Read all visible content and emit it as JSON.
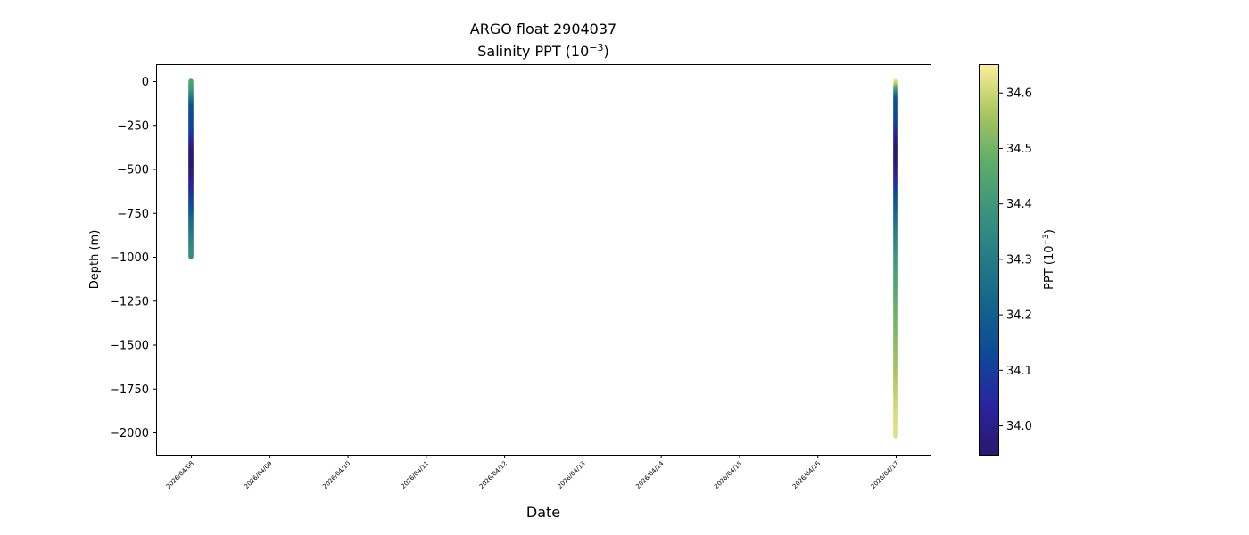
{
  "chart_data": {
    "type": "scatter",
    "title": "ARGO float 2904037",
    "subtitle_prefix": "Salinity PPT (10",
    "subtitle_exp": "−3",
    "subtitle_suffix": ")",
    "xlabel": "Date",
    "ylabel": "Depth (m)",
    "xlim": [
      "2026/04/07 13:30",
      "2026/04/17 10:30"
    ],
    "ylim": [
      -2127,
      96
    ],
    "grid": false,
    "x_ticks": [
      "2026/04/08",
      "2026/04/09",
      "2026/04/10",
      "2026/04/11",
      "2026/04/12",
      "2026/04/13",
      "2026/04/14",
      "2026/04/15",
      "2026/04/16",
      "2026/04/17"
    ],
    "y_ticks": [
      0,
      -250,
      -500,
      -750,
      -1000,
      -1250,
      -1500,
      -1750,
      -2000
    ],
    "y_tick_labels": [
      "0",
      "−250",
      "−500",
      "−750",
      "−1000",
      "−1250",
      "−1500",
      "−1750",
      "−2000"
    ],
    "colorbar": {
      "label_prefix": "PPT (10",
      "label_exp": "−3",
      "label_suffix": ")",
      "colormap": "haline",
      "range": [
        33.947,
        34.651
      ],
      "ticks": [
        34.0,
        34.1,
        34.2,
        34.3,
        34.4,
        34.5,
        34.6
      ],
      "tick_labels": [
        "34.0",
        "34.1",
        "34.2",
        "34.3",
        "34.4",
        "34.5",
        "34.6"
      ],
      "colors": [
        "#2a186c",
        "#2a23a0",
        "#0f4799",
        "#12628c",
        "#257a86",
        "#3a947e",
        "#5dad6a",
        "#a9c55f",
        "#fdef9a"
      ]
    },
    "series": [
      {
        "date": "2026/04/08",
        "depth": [
          0,
          -50,
          -100,
          -150,
          -200,
          -250,
          -300,
          -350,
          -400,
          -450,
          -500,
          -550,
          -600,
          -650,
          -700,
          -750,
          -800,
          -850,
          -900,
          -950,
          -1000
        ],
        "salinity": [
          34.45,
          34.42,
          34.3,
          34.15,
          34.13,
          34.13,
          34.1,
          34.03,
          33.97,
          33.95,
          33.96,
          33.99,
          34.03,
          34.08,
          34.12,
          34.18,
          34.24,
          34.28,
          34.32,
          34.35,
          34.37
        ]
      },
      {
        "date": "2026/04/17",
        "depth": [
          0,
          -25,
          -50,
          -100,
          -150,
          -200,
          -250,
          -300,
          -350,
          -400,
          -450,
          -500,
          -550,
          -600,
          -650,
          -700,
          -750,
          -800,
          -850,
          -900,
          -950,
          -1000,
          -1100,
          -1200,
          -1300,
          -1400,
          -1500,
          -1600,
          -1700,
          -1800,
          -1900,
          -2000,
          -2020
        ],
        "salinity": [
          34.64,
          34.58,
          34.45,
          34.18,
          34.14,
          34.13,
          34.1,
          34.05,
          33.98,
          33.95,
          33.96,
          33.99,
          34.04,
          34.08,
          34.13,
          34.18,
          34.22,
          34.26,
          34.3,
          34.33,
          34.36,
          34.39,
          34.43,
          34.46,
          34.49,
          34.51,
          34.53,
          34.55,
          34.57,
          34.59,
          34.61,
          34.62,
          34.62
        ]
      }
    ]
  }
}
